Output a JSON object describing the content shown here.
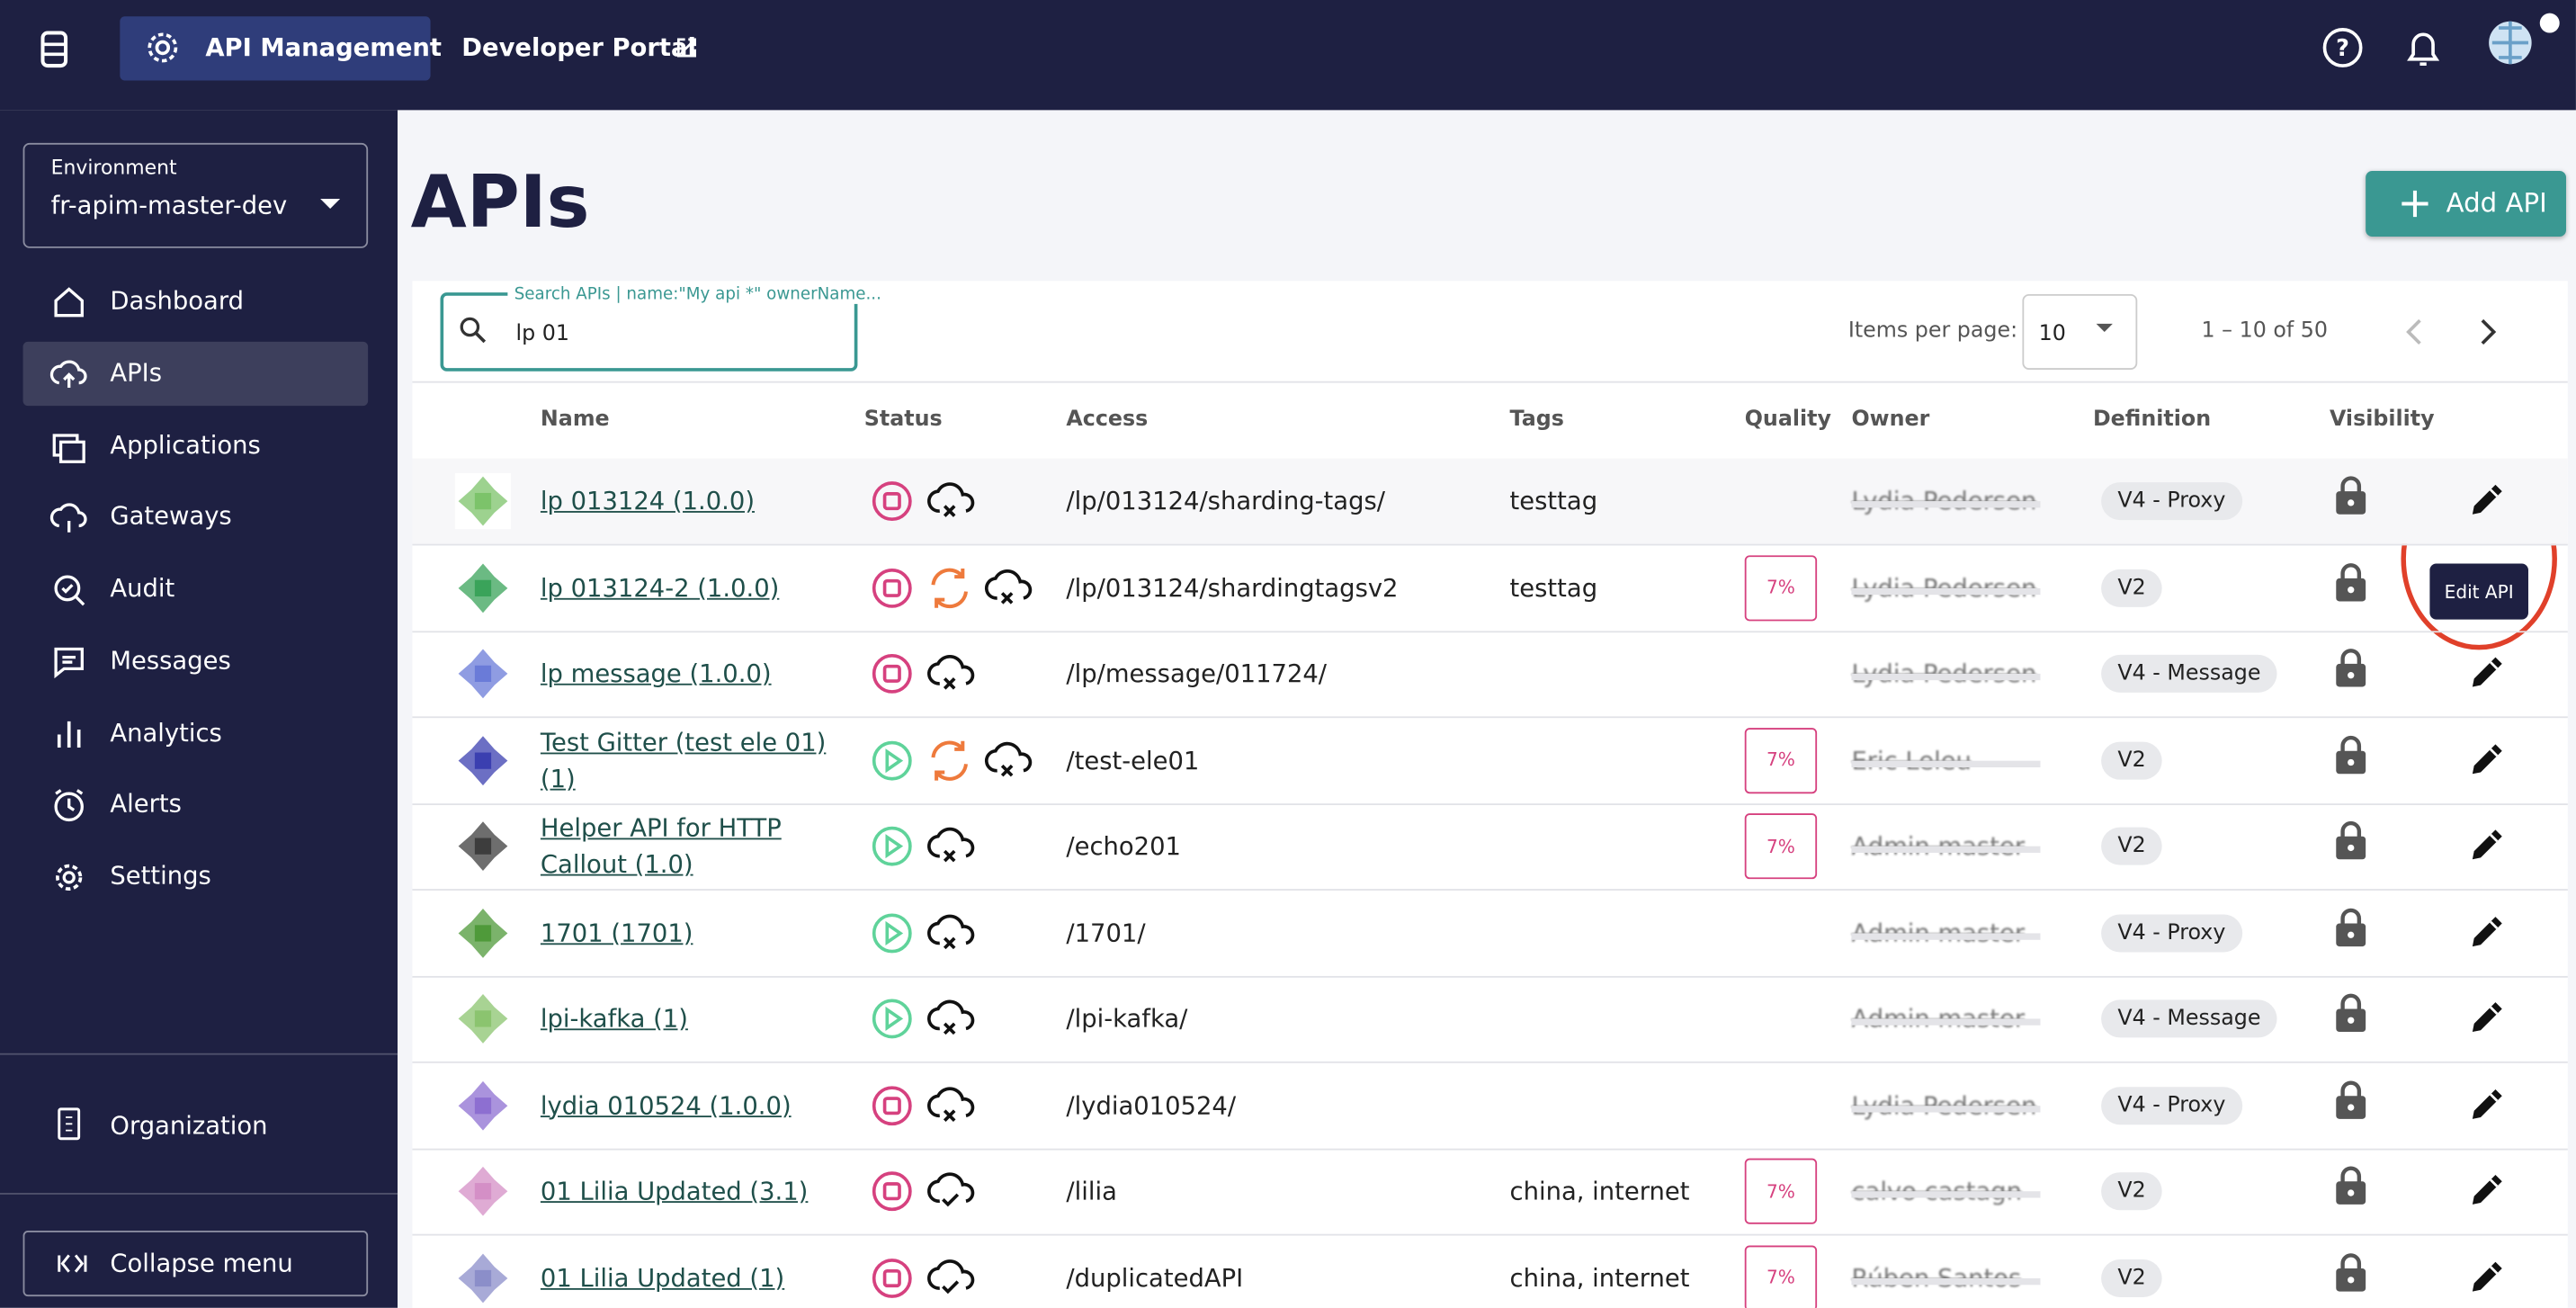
{
  "header": {
    "nav": [
      "API Management",
      "Developer Portal"
    ]
  },
  "sidebar": {
    "environment_label": "Environment",
    "environment": "fr-apim-master-dev",
    "menu": [
      "Dashboard",
      "APIs",
      "Applications",
      "Gateways",
      "Audit",
      "Messages",
      "Analytics",
      "Alerts",
      "Settings"
    ],
    "organization": "Organization",
    "collapse": "Collapse menu"
  },
  "main": {
    "title": "APIs",
    "add_button": "Add API",
    "search_label": "Search APIs | name:\"My api *\" ownerName...",
    "search_value": "lp 01",
    "items_per_page_label": "Items per page:",
    "items_per_page": "10",
    "range": "1 – 10 of 50",
    "tooltip": "Edit API"
  },
  "table": {
    "columns": [
      "Name",
      "Status",
      "Access",
      "Tags",
      "Quality",
      "Owner",
      "Definition",
      "Visibility"
    ],
    "rows": [
      [
        "lp 013124 (1.0.0)",
        "/lp/013124/sharding-tags/",
        "testtag",
        "",
        "Lydia Pedersen",
        "V4 - Proxy"
      ],
      [
        "lp 013124-2 (1.0.0)",
        "/lp/013124/shardingtagsv2",
        "testtag",
        "7%",
        "Lydia Pedersen",
        "V2"
      ],
      [
        "lp message (1.0.0)",
        "/lp/message/011724/",
        "",
        "",
        "Lydia Pedersen",
        "V4 - Message"
      ],
      [
        "Test Gitter (test ele 01) (1)",
        "/test-ele01",
        "",
        "7%",
        "Eric Leleu",
        "V2"
      ],
      [
        "Helper API for HTTP Callout (1.0)",
        "/echo201",
        "",
        "7%",
        "Admin master",
        "V2"
      ],
      [
        "1701 (1701)",
        "/1701/",
        "",
        "",
        "Admin master",
        "V4 - Proxy"
      ],
      [
        "lpi-kafka (1)",
        "/lpi-kafka/",
        "",
        "",
        "Admin master",
        "V4 - Message"
      ],
      [
        "lydia 010524 (1.0.0)",
        "/lydia010524/",
        "",
        "",
        "Lydia Pedersen",
        "V4 - Proxy"
      ],
      [
        "01 Lilia Updated (3.1)",
        "/lilia",
        "china, internet",
        "7%",
        "calvo castagn",
        "V2"
      ],
      [
        "01 Lilia Updated (1)",
        "/duplicatedAPI",
        "china, internet",
        "7%",
        "Rúben Santos",
        "V2"
      ]
    ]
  }
}
